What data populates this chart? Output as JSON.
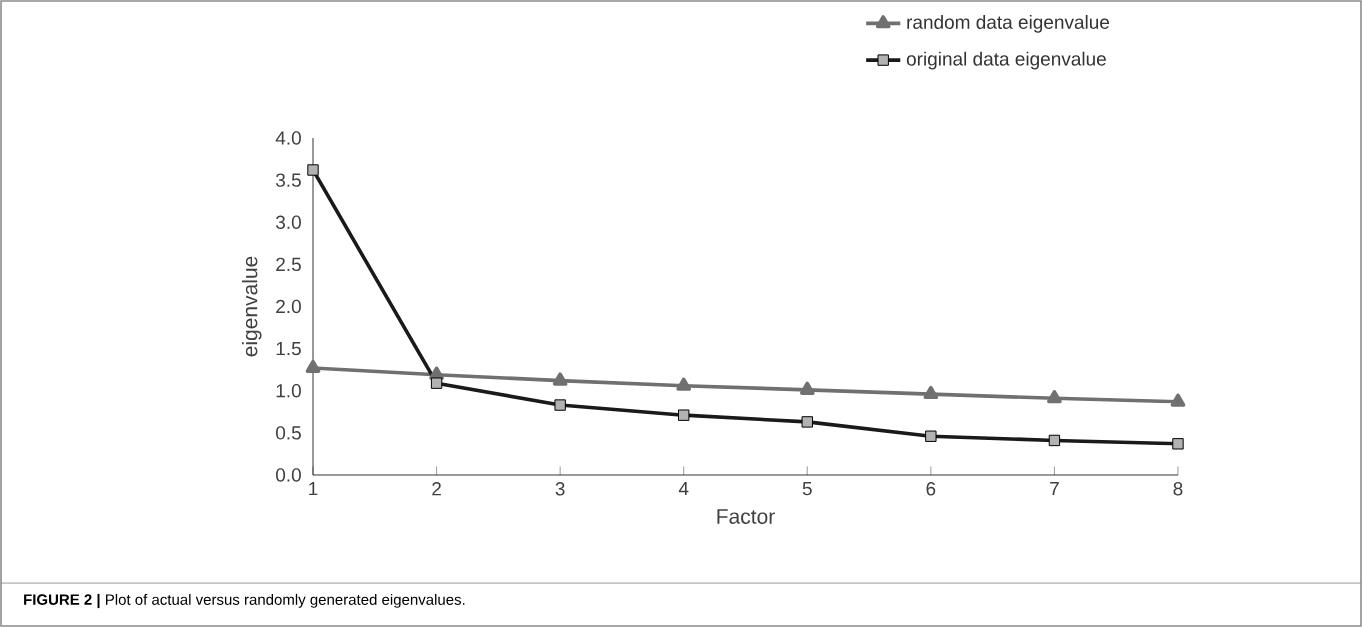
{
  "chart_data": {
    "type": "line",
    "xlabel": "Factor",
    "ylabel": "eigenvalue",
    "x": [
      1,
      2,
      3,
      4,
      5,
      6,
      7,
      8
    ],
    "series": [
      {
        "name": "random data eigenvalue",
        "color": "#707070",
        "marker": "triangle",
        "values": [
          1.27,
          1.19,
          1.12,
          1.06,
          1.01,
          0.96,
          0.91,
          0.87
        ]
      },
      {
        "name": "original  data eigenvalue",
        "color": "#1a1a1a",
        "marker": "square",
        "values": [
          3.62,
          1.09,
          0.83,
          0.71,
          0.63,
          0.46,
          0.41,
          0.37
        ]
      }
    ],
    "xlim": [
      1,
      8
    ],
    "xticks": [
      1,
      2,
      3,
      4,
      5,
      6,
      7,
      8
    ],
    "ylim": [
      0,
      4
    ],
    "yticks": [
      {
        "value": 0,
        "label": "0.0"
      },
      {
        "value": 0.5,
        "label": "0.5"
      },
      {
        "value": 1,
        "label": "1.0"
      },
      {
        "value": 1.5,
        "label": "1.5"
      },
      {
        "value": 2,
        "label": "2.0"
      },
      {
        "value": 2.5,
        "label": "2.5"
      },
      {
        "value": 3,
        "label": "3.0"
      },
      {
        "value": 3.5,
        "label": "3.5"
      },
      {
        "value": 4,
        "label": "4.0"
      }
    ],
    "grid": false,
    "legend": "top right",
    "annotations": [
      "**FIGURE 2 |** Plot of actual versus randomly generated eigenvalues."
    ]
  }
}
